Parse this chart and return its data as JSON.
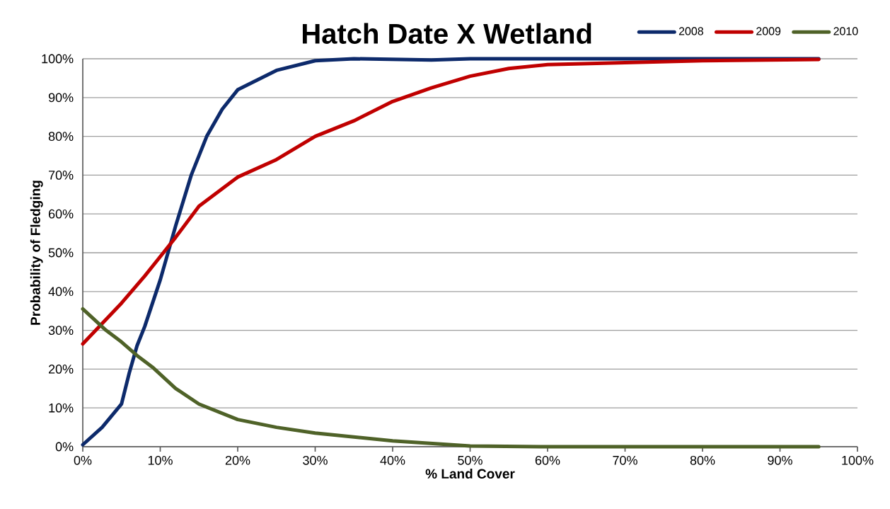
{
  "chart_data": {
    "type": "line",
    "title": "Hatch Date X Wetland",
    "xlabel": "% Land Cover",
    "ylabel": "Probability of Fledging",
    "xlim": [
      0,
      100
    ],
    "ylim": [
      0,
      100
    ],
    "xticks": [
      {
        "value": 0,
        "label": "0%"
      },
      {
        "value": 10,
        "label": "10%"
      },
      {
        "value": 20,
        "label": "20%"
      },
      {
        "value": 30,
        "label": "30%"
      },
      {
        "value": 40,
        "label": "40%"
      },
      {
        "value": 50,
        "label": "50%"
      },
      {
        "value": 60,
        "label": "60%"
      },
      {
        "value": 70,
        "label": "70%"
      },
      {
        "value": 80,
        "label": "80%"
      },
      {
        "value": 90,
        "label": "90%"
      },
      {
        "value": 100,
        "label": "100%"
      }
    ],
    "yticks": [
      {
        "value": 0,
        "label": "0%"
      },
      {
        "value": 10,
        "label": "10%"
      },
      {
        "value": 20,
        "label": "20%"
      },
      {
        "value": 30,
        "label": "30%"
      },
      {
        "value": 40,
        "label": "40%"
      },
      {
        "value": 50,
        "label": "50%"
      },
      {
        "value": 60,
        "label": "60%"
      },
      {
        "value": 70,
        "label": "70%"
      },
      {
        "value": 80,
        "label": "80%"
      },
      {
        "value": 90,
        "label": "90%"
      },
      {
        "value": 100,
        "label": "100%"
      }
    ],
    "grid": "y",
    "legend": "top right",
    "marker": "none",
    "line_style": "solid",
    "series": [
      {
        "name": "2008",
        "color": "#0d2a6b",
        "x": [
          0,
          2.5,
          5,
          6,
          7,
          8,
          10,
          12,
          14,
          16,
          18,
          20,
          25,
          30,
          35,
          45,
          50,
          60,
          70,
          80,
          95
        ],
        "values": [
          0.5,
          5,
          11,
          19,
          26,
          31,
          43,
          57,
          70,
          80,
          87,
          92,
          97,
          99.5,
          100,
          99.7,
          100,
          100,
          100,
          100,
          100
        ]
      },
      {
        "name": "2009",
        "color": "#c00000",
        "x": [
          0,
          5,
          8,
          10,
          12,
          15,
          20,
          25,
          30,
          35,
          40,
          45,
          50,
          55,
          60,
          70,
          80,
          95
        ],
        "values": [
          26.5,
          37,
          44,
          49,
          54,
          62,
          69.5,
          74,
          80,
          84,
          89,
          92.5,
          95.5,
          97.5,
          98.5,
          99,
          99.5,
          99.8
        ]
      },
      {
        "name": "2010",
        "color": "#4f6228",
        "x": [
          0,
          3,
          5,
          7,
          9,
          12,
          15,
          20,
          25,
          30,
          40,
          50,
          60,
          70,
          80,
          95
        ],
        "values": [
          35.5,
          30,
          27,
          23.5,
          20.5,
          15,
          11,
          7,
          5,
          3.5,
          1.5,
          0.2,
          0,
          0,
          0,
          0
        ]
      }
    ]
  }
}
